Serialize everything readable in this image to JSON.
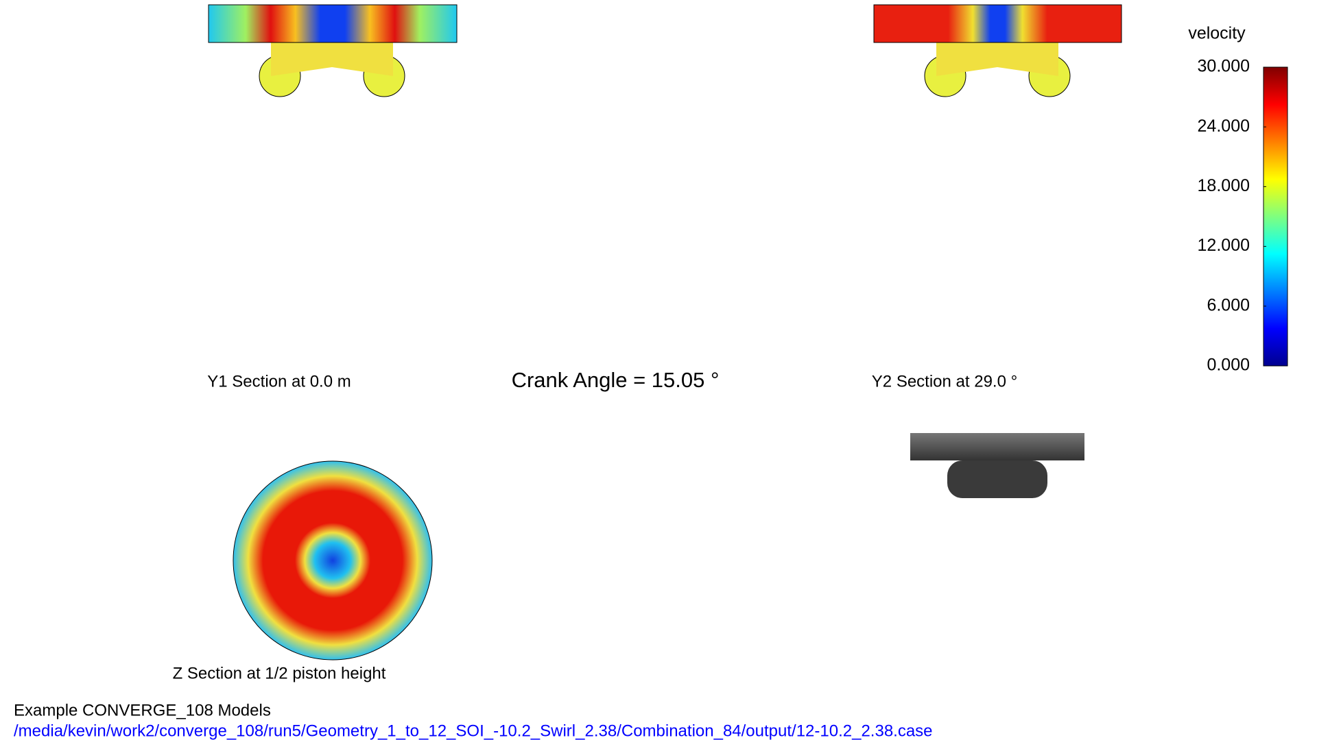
{
  "colorbar": {
    "title": "velocity",
    "range": [
      0,
      30
    ],
    "ticks": [
      {
        "value": 0,
        "label": "0.000"
      },
      {
        "value": 6,
        "label": "6.000"
      },
      {
        "value": 12,
        "label": "12.000"
      },
      {
        "value": 18,
        "label": "18.000"
      },
      {
        "value": 24,
        "label": "24.000"
      },
      {
        "value": 30,
        "label": "30.000"
      }
    ]
  },
  "labels": {
    "y1": "Y1 Section at 0.0 m",
    "crank": "Crank Angle = 15.05 °",
    "y2": "Y2 Section at 29.0 °",
    "z": "Z Section at 1/2 piston height"
  },
  "footer": {
    "title": "Example CONVERGE_108 Models",
    "path": "/media/kevin/work2/converge_108/run5/Geometry_1_to_12_SOI_-10.2_Swirl_2.38/Combination_84/output/12-10.2_2.38.case"
  }
}
